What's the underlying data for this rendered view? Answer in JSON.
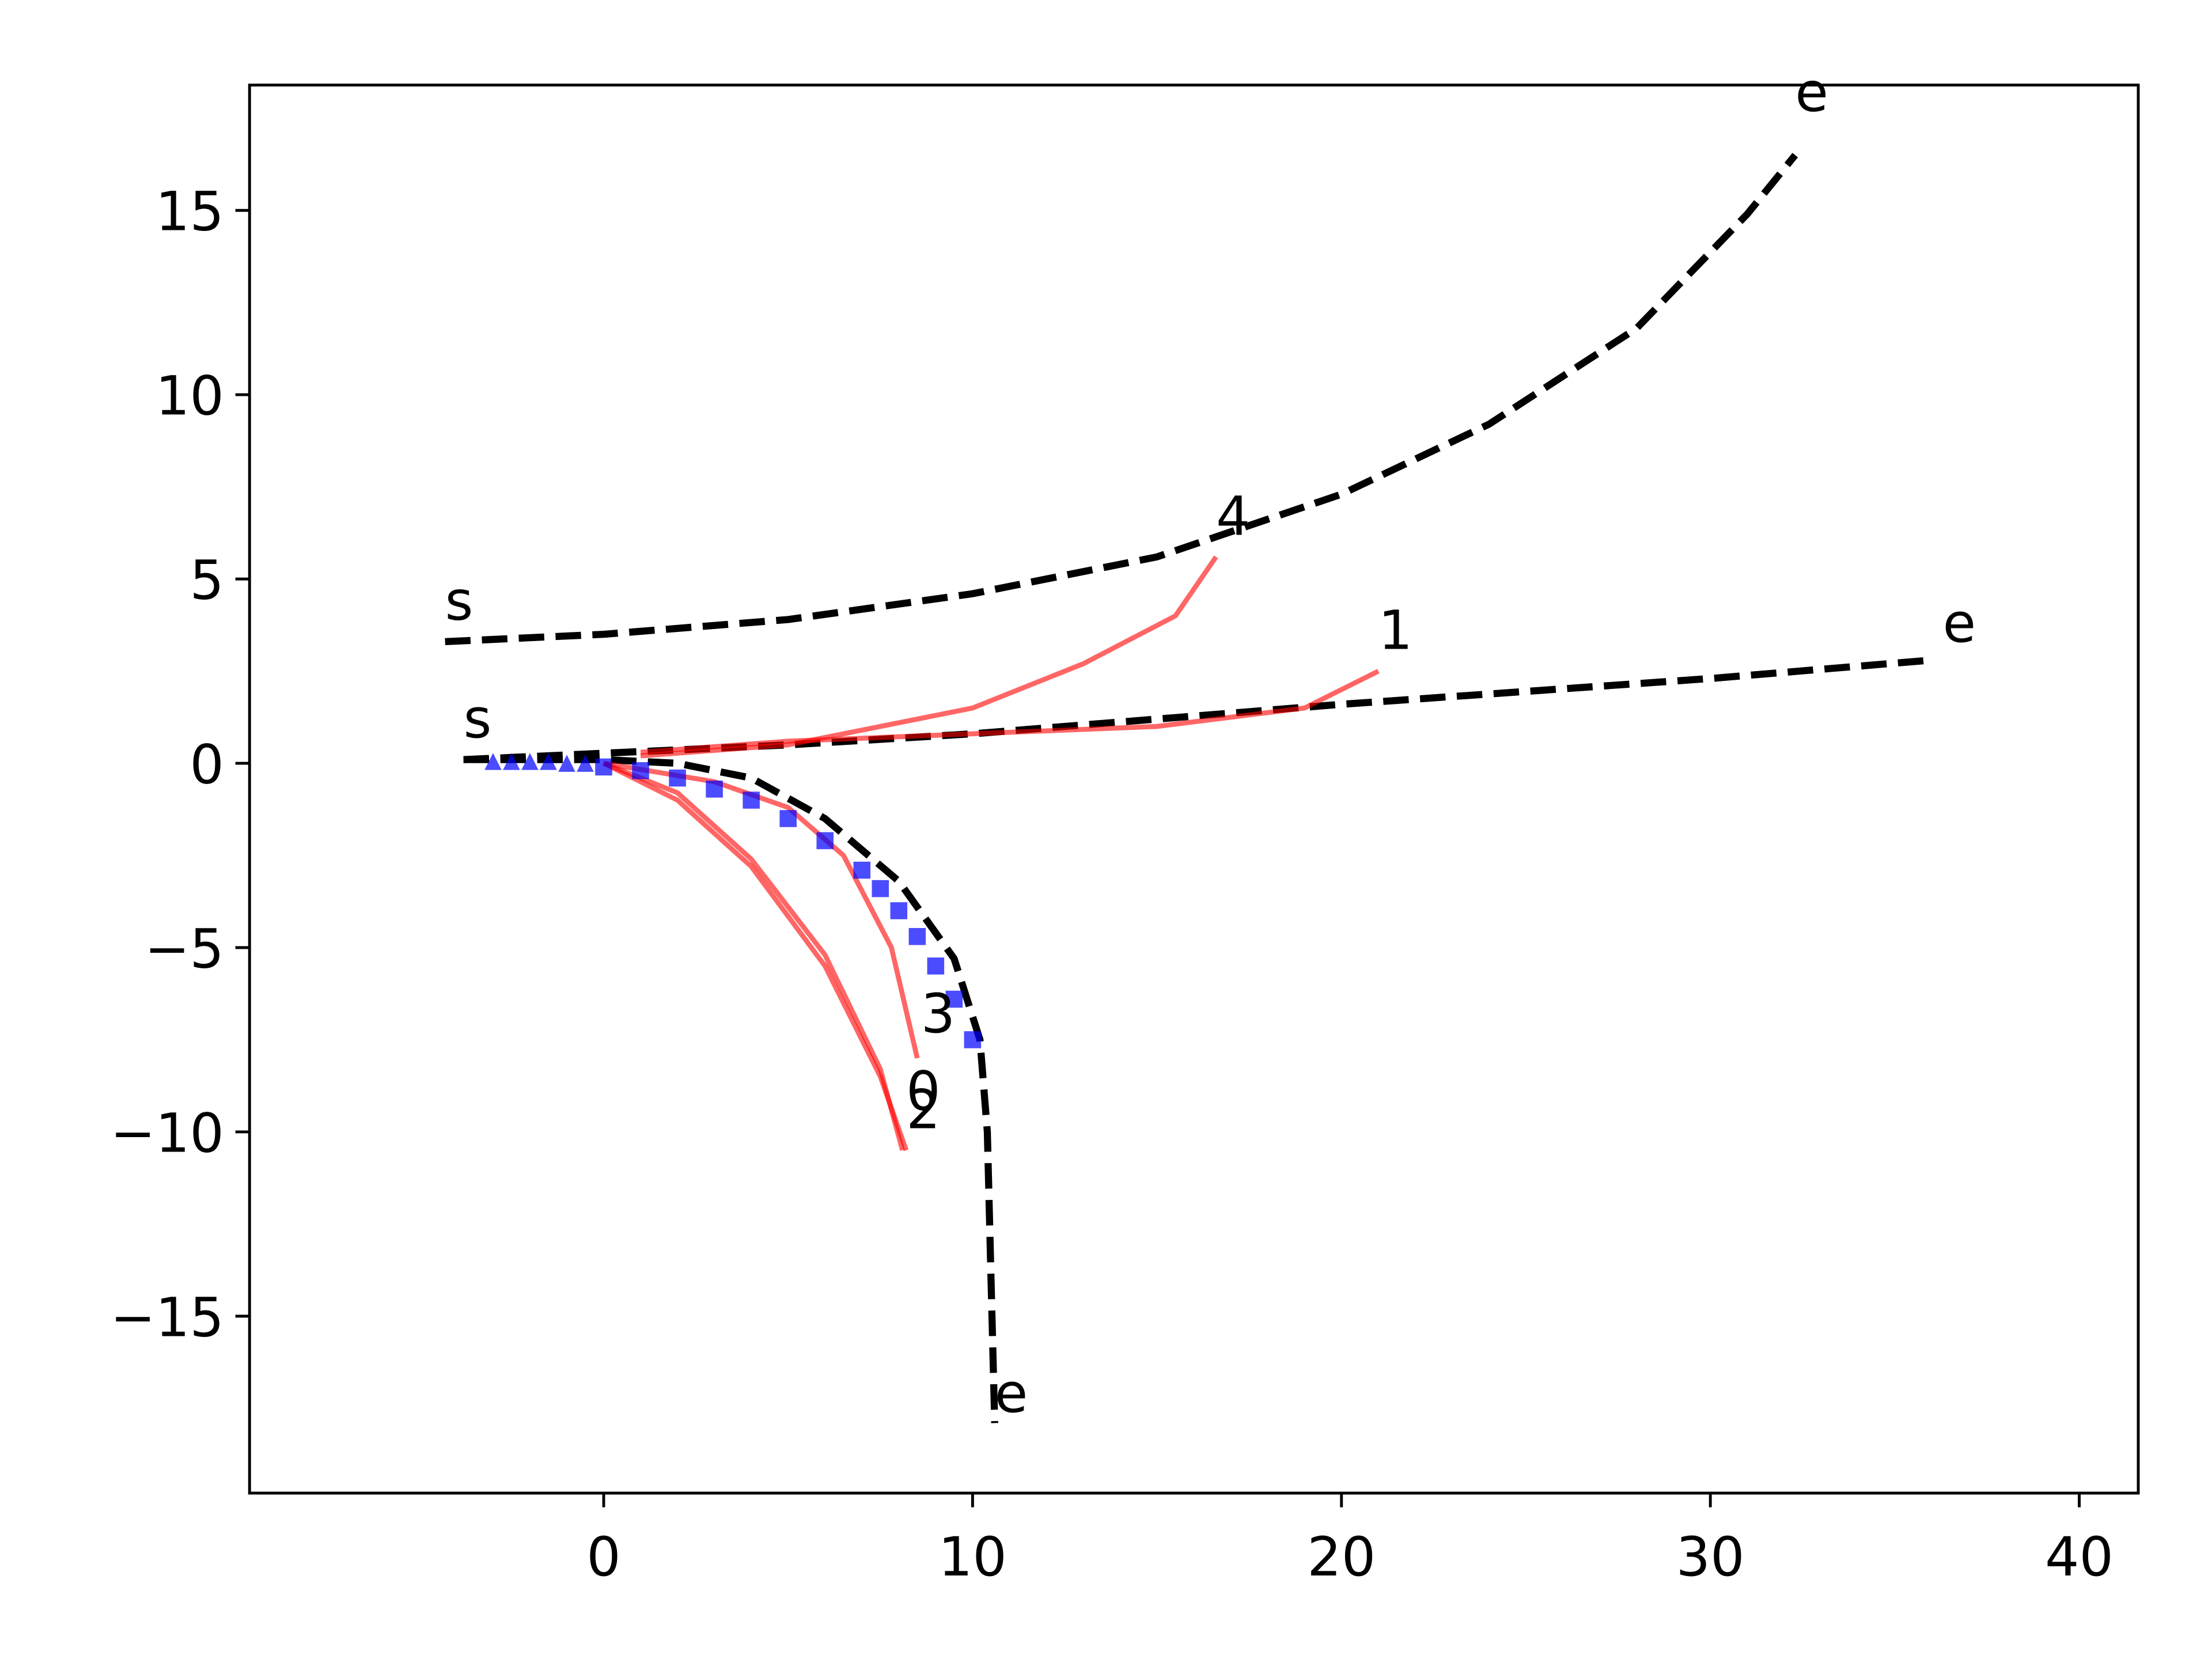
{
  "chart_data": {
    "type": "line",
    "xlim": [
      -9.6,
      41.6
    ],
    "ylim": [
      -19.8,
      18.4
    ],
    "xticks": [
      0,
      10,
      20,
      30,
      40
    ],
    "yticks": [
      {
        "value": -15,
        "label": "−15"
      },
      {
        "value": -10,
        "label": "−10"
      },
      {
        "value": -5,
        "label": "−5"
      },
      0,
      5,
      10,
      15
    ],
    "grid": false,
    "series": [
      {
        "color": "#000000",
        "style": "dashed",
        "x": [
          -4.3,
          0,
          5,
          10,
          15,
          20,
          24,
          28,
          31,
          32.3
        ],
        "values": [
          3.3,
          3.5,
          3.9,
          4.6,
          5.6,
          7.3,
          9.2,
          11.8,
          14.9,
          16.5
        ]
      },
      {
        "color": "#000000",
        "style": "dashed",
        "x": [
          -3.8,
          5,
          10,
          20,
          30,
          36
        ],
        "values": [
          0.1,
          0.5,
          0.8,
          1.6,
          2.3,
          2.8
        ]
      },
      {
        "color": "#000000",
        "style": "dashed",
        "x": [
          -3.8,
          0,
          2,
          4,
          6,
          8,
          9.5,
          10.2,
          10.4,
          10.5,
          10.6
        ],
        "values": [
          0.1,
          0.1,
          0,
          -0.4,
          -1.5,
          -3.2,
          -5.3,
          -7.5,
          -10,
          -14,
          -17.9
        ]
      },
      {
        "color": "#ff0000",
        "style": "dotted",
        "x": [
          0,
          2,
          4,
          6,
          7.5,
          8.2
        ],
        "values": [
          0,
          -1,
          -2.8,
          -5.5,
          -8.5,
          -10.5
        ]
      },
      {
        "color": "#ff0000",
        "style": "dotted",
        "x": [
          1,
          5,
          10,
          15,
          19,
          21
        ],
        "values": [
          0.3,
          0.6,
          0.8,
          1.0,
          1.5,
          2.5
        ]
      },
      {
        "color": "#ff0000",
        "style": "dotted",
        "x": [
          0,
          2,
          4,
          6,
          7.5,
          8.1
        ],
        "values": [
          0,
          -0.8,
          -2.6,
          -5.2,
          -8.3,
          -10.5
        ]
      },
      {
        "color": "#ff0000",
        "style": "dotted",
        "x": [
          0,
          3,
          5,
          6.5,
          7.8,
          8.5
        ],
        "values": [
          0,
          -0.5,
          -1.2,
          -2.5,
          -5,
          -8
        ]
      },
      {
        "color": "#ff0000",
        "style": "dotted",
        "x": [
          1,
          5,
          10,
          13,
          15.5,
          16.6
        ],
        "values": [
          0.2,
          0.5,
          1.5,
          2.7,
          4,
          5.6
        ]
      },
      {
        "color": "#0000ff",
        "style": "triangle",
        "x": [
          -3,
          -2.5,
          -2,
          -1.5,
          -1,
          -0.5
        ],
        "values": [
          0.05,
          0.05,
          0.05,
          0.05,
          0.0,
          0.0
        ]
      },
      {
        "color": "#0000ff",
        "style": "square",
        "x": [
          0,
          1,
          2,
          3,
          4,
          5,
          6,
          7,
          7.5,
          8,
          8.5,
          9,
          9.5,
          10
        ],
        "values": [
          -0.1,
          -0.2,
          -0.4,
          -0.7,
          -1.0,
          -1.5,
          -2.1,
          -2.9,
          -3.4,
          -4.0,
          -4.7,
          -5.5,
          -6.4,
          -7.5
        ]
      }
    ],
    "annotations": [
      {
        "text": "s",
        "x": -4.3,
        "y": 3.9
      },
      {
        "text": "e",
        "x": 32.3,
        "y": 17.7
      },
      {
        "text": "s",
        "x": -3.8,
        "y": 0.7
      },
      {
        "text": "e",
        "x": 36.3,
        "y": 3.3
      },
      {
        "text": "e",
        "x": 10.6,
        "y": -17.6
      },
      {
        "text": "0",
        "x": 8.2,
        "y": -9.4
      },
      {
        "text": "1",
        "x": 21,
        "y": 3.1
      },
      {
        "text": "2",
        "x": 8.2,
        "y": -9.9
      },
      {
        "text": "3",
        "x": 8.6,
        "y": -7.3
      },
      {
        "text": "4",
        "x": 16.6,
        "y": 6.2
      }
    ]
  }
}
